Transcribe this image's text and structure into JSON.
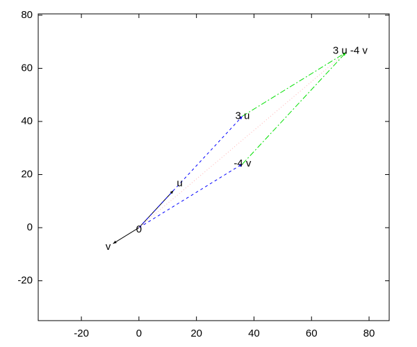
{
  "chart_data": {
    "type": "vector",
    "xlim": [
      -35,
      87
    ],
    "ylim": [
      -35,
      80.5
    ],
    "xticks": [
      -20,
      0,
      20,
      40,
      60,
      80
    ],
    "yticks": [
      -20,
      0,
      20,
      40,
      60,
      80
    ],
    "points": [
      {
        "label": "0",
        "x": 0,
        "y": 0
      },
      {
        "label": "u",
        "x": 12,
        "y": 14
      },
      {
        "label": "v",
        "x": -9,
        "y": -6
      },
      {
        "label": "3 u",
        "x": 36,
        "y": 42
      },
      {
        "label": "-4 v",
        "x": 36,
        "y": 24
      },
      {
        "label": "3 u -4 v",
        "x": 72,
        "y": 66
      }
    ],
    "segments": [
      {
        "from": 0,
        "to": 1,
        "color": "#000000",
        "dash": "solid",
        "arrow": true
      },
      {
        "from": 0,
        "to": 2,
        "color": "#000000",
        "dash": "solid",
        "arrow": true
      },
      {
        "from": 0,
        "to": 3,
        "color": "#0000ff",
        "dash": "dashed",
        "arrow": true
      },
      {
        "from": 0,
        "to": 4,
        "color": "#0000ff",
        "dash": "dashed",
        "arrow": true
      },
      {
        "from": 3,
        "to": 5,
        "color": "#00e000",
        "dash": "dashdot",
        "arrow": true
      },
      {
        "from": 4,
        "to": 5,
        "color": "#00e000",
        "dash": "dashdot",
        "arrow": true
      },
      {
        "from": 0,
        "to": 5,
        "color": "#ffb0b0",
        "dash": "dotted",
        "arrow": false
      }
    ]
  }
}
